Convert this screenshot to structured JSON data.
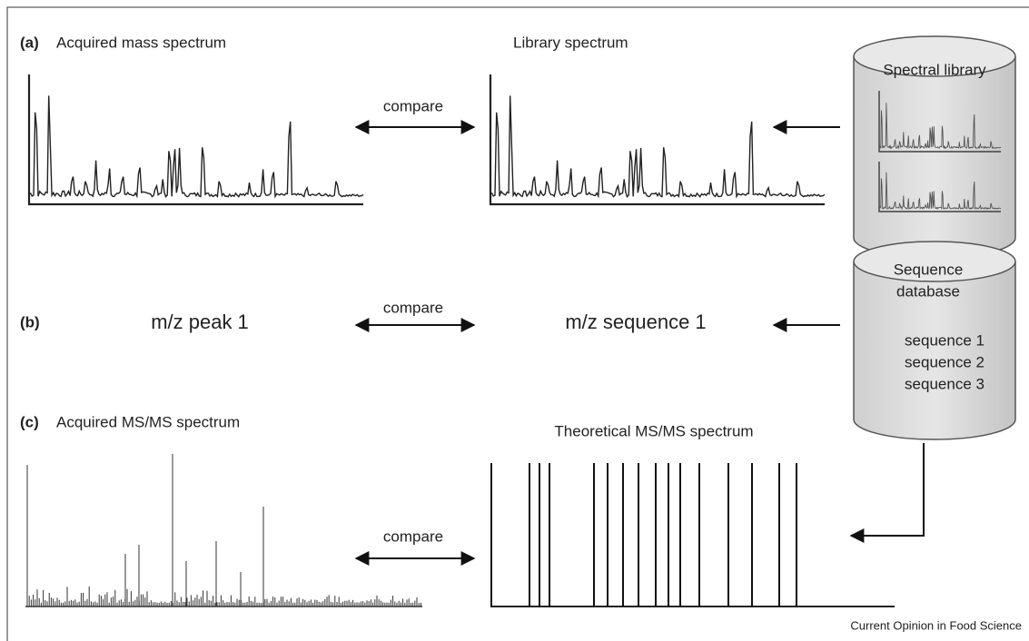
{
  "panel_a": {
    "label": "(a)",
    "left_title": "Acquired mass spectrum",
    "right_title": "Library spectrum",
    "compare": "compare",
    "store": {
      "title": "Spectral library"
    }
  },
  "panel_b": {
    "label": "(b)",
    "left_text": "m/z peak 1",
    "right_text": "m/z sequence 1",
    "compare": "compare",
    "store": {
      "title_lines": [
        "Sequence",
        "database"
      ],
      "items": [
        "sequence 1",
        "sequence 2",
        "sequence 3"
      ]
    }
  },
  "panel_c": {
    "label": "(c)",
    "left_title": "Acquired MS/MS spectrum",
    "right_title": "Theoretical MS/MS spectrum",
    "compare": "compare"
  },
  "footer": {
    "credit": "Current Opinion in Food Science"
  }
}
